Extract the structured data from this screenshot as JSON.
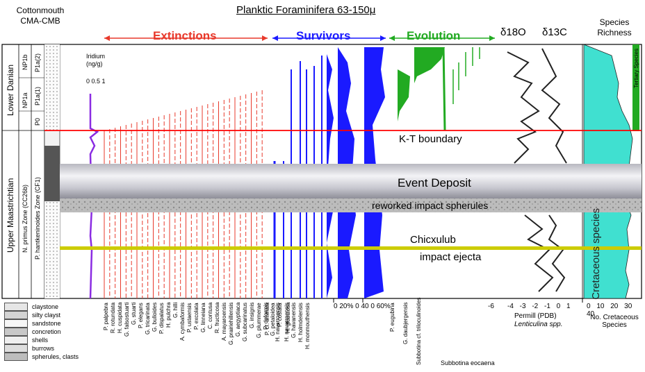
{
  "headers": {
    "left_title_1": "Cottonmouth",
    "left_title_2": "CMA-CMB",
    "main_title": "Planktic Foraminifera 63-150μ",
    "extinctions": "Extinctions",
    "survivors": "Survivors",
    "evolution": "Evolution",
    "d18o": "δ18O",
    "d13c": "δ13C",
    "richness_1": "Species",
    "richness_2": "Richness",
    "iridium_1": "Iridium",
    "iridium_2": "(ng/g)",
    "iridium_ticks": "0 0.5 1"
  },
  "stratigraphy": {
    "lower_danian": "Lower Danian",
    "upper_maastrichtian": "Upper Maastrichtian",
    "zone_np1a": "NP1a",
    "zone_np1b": "NP1b",
    "zone_p0": "P0",
    "zone_p1a1": "P1a(1)",
    "zone_p1a2": "P1a(2)",
    "zone_nprimus": "N. primus Zone (CC26b)",
    "zone_phantken": "P. hantkeninoides Zone (CF1)"
  },
  "annotations": {
    "kt_boundary": "K-T boundary",
    "event_deposit": "Event Deposit",
    "reworked": "reworked impact spherules",
    "chicxulub": "Chicxulub",
    "impact_ejecta": "impact ejecta",
    "cretaceous_species": "Cretaceous species",
    "tertiary_species": "Tertiary Species"
  },
  "legend": [
    "claystone",
    "silty clayst",
    "sandstone",
    "concretion",
    "shells",
    "burrows",
    "spherules, clasts"
  ],
  "bottom_axes": {
    "survivor_ticks": "0 20% 0 40 0 60%",
    "isotope_ticks": "-4 -3 -2 -1 0 1",
    "isotope_label_1": "Permill (PDB)",
    "isotope_label_2": "Lenticulina spp.",
    "rich_ticks": "0 10 20 30 40",
    "rich_label_1": "No. Cretaceous",
    "rich_label_2": "Species",
    "subbotina_label": "Subbotina eocaena",
    "neg6": "-6"
  },
  "species_extinct": [
    "P. palpebra",
    "R. rotundata",
    "H. cuspidata",
    "G. falsostuarti",
    "G. stuarti",
    "P. elegans",
    "G. tricarinata",
    "G. bulloides",
    "P. dispalatus",
    "H. pulchra",
    "G. hilli",
    "A. cymbaformis",
    "P. ustaensis",
    "P. excolata",
    "G. linneiana",
    "C. contusa",
    "R. fructicosa",
    "A. mayaroensis",
    "G. prairiehillensis",
    "G. aegyptiaca",
    "G. subcarinatus",
    "G. insignis",
    "G. plummerae",
    "P. deformis",
    "G. petaloidea",
    "P. costata",
    "H. navarroensis",
    "G. havanensis",
    "H. holmdelensis",
    "H. monmouthensis"
  ],
  "species_survivor": [
    "G. esnehensis",
    "H. monmouthensis",
    "H. dentata",
    "H. globulosa",
    "G. cretacea"
  ],
  "species_survivor_bottom": [
    "P. cf. liminata",
    "H. navarroensis",
    "H. globulosa"
  ],
  "species_evolution": [
    "P. eugubina",
    "G. daubjergensis",
    "Subbotina cf. triloculinoides"
  ],
  "colors": {
    "extinction": "#e8392b",
    "survivor": "#1a1aff",
    "evolution": "#22aa22",
    "richness": "#40e0d0",
    "kt_line": "#ff0000",
    "chicxulub_line": "#cccc00",
    "iridium": "#8a2be2"
  }
}
